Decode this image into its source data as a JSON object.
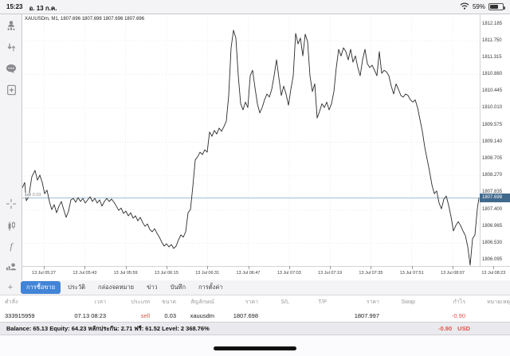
{
  "status_bar": {
    "time": "15:23",
    "date": "อ. 13 ก.ค.",
    "battery_percent": "59%"
  },
  "sidebar": {
    "icons": [
      "account-icon",
      "trade-arrows-icon",
      "chat-icon",
      "new-order-icon",
      "crosshair-icon",
      "chart-type-icon",
      "indicators-icon",
      "objects-icon"
    ],
    "timeframe_label": "M1"
  },
  "chart": {
    "title": "XAUUSDm, M1, 1807.696 1807.698 1807.696 1807.696",
    "position_label": "sell 0.03",
    "current_price_label": "1807.698",
    "y_axis_labels": [
      "1812.185",
      "1811.750",
      "1811.315",
      "1810.880",
      "1810.445",
      "1810.010",
      "1809.575",
      "1809.140",
      "1808.705",
      "1808.270",
      "1807.835",
      "1807.400",
      "1806.965",
      "1806.530",
      "1806.095"
    ],
    "x_axis_labels": [
      "13 Jul 05:27",
      "13 Jul 05:43",
      "13 Jul 05:59",
      "13 Jul 06:15",
      "13 Jul 06:31",
      "13 Jul 06:47",
      "13 Jul 07:03",
      "13 Jul 07:19",
      "13 Jul 07:35",
      "13 Jul 07:51",
      "13 Jul 08:07",
      "13 Jul 08:23"
    ]
  },
  "chart_data": {
    "type": "line",
    "symbol": "XAUUSDm",
    "timeframe": "M1",
    "ohlc_display": [
      1807.696,
      1807.698,
      1807.696,
      1807.696
    ],
    "current_price": 1807.698,
    "position_price_line": 1807.698,
    "ylim": [
      1806.095,
      1812.185
    ],
    "grid": true,
    "points": [
      [
        0,
        1807.96
      ],
      [
        3,
        1808.1
      ],
      [
        5,
        1807.63
      ],
      [
        8,
        1807.73
      ],
      [
        12,
        1808.25
      ],
      [
        16,
        1808.41
      ],
      [
        19,
        1808.16
      ],
      [
        22,
        1808.29
      ],
      [
        25,
        1808.1
      ],
      [
        28,
        1807.81
      ],
      [
        31,
        1807.9
      ],
      [
        34,
        1807.61
      ],
      [
        37,
        1807.4
      ],
      [
        40,
        1807.53
      ],
      [
        43,
        1807.32
      ],
      [
        46,
        1807.49
      ],
      [
        49,
        1807.61
      ],
      [
        52,
        1807.4
      ],
      [
        55,
        1807.2
      ],
      [
        58,
        1807.36
      ],
      [
        61,
        1807.65
      ],
      [
        64,
        1807.69
      ],
      [
        67,
        1807.59
      ],
      [
        70,
        1807.71
      ],
      [
        73,
        1807.61
      ],
      [
        76,
        1807.69
      ],
      [
        79,
        1807.57
      ],
      [
        82,
        1807.65
      ],
      [
        85,
        1807.73
      ],
      [
        88,
        1807.61
      ],
      [
        91,
        1807.69
      ],
      [
        94,
        1807.57
      ],
      [
        97,
        1807.65
      ],
      [
        100,
        1807.49
      ],
      [
        103,
        1807.61
      ],
      [
        106,
        1807.69
      ],
      [
        109,
        1807.61
      ],
      [
        112,
        1807.67
      ],
      [
        115,
        1807.59
      ],
      [
        118,
        1807.49
      ],
      [
        121,
        1807.38
      ],
      [
        124,
        1807.44
      ],
      [
        127,
        1807.3
      ],
      [
        130,
        1807.36
      ],
      [
        133,
        1807.24
      ],
      [
        136,
        1807.32
      ],
      [
        139,
        1807.18
      ],
      [
        142,
        1807.24
      ],
      [
        145,
        1807.11
      ],
      [
        148,
        1807.2
      ],
      [
        151,
        1807.07
      ],
      [
        154,
        1806.97
      ],
      [
        157,
        1807.03
      ],
      [
        160,
        1806.89
      ],
      [
        163,
        1806.83
      ],
      [
        166,
        1806.91
      ],
      [
        169,
        1806.79
      ],
      [
        172,
        1806.69
      ],
      [
        175,
        1806.56
      ],
      [
        178,
        1806.46
      ],
      [
        181,
        1806.52
      ],
      [
        184,
        1806.44
      ],
      [
        187,
        1806.5
      ],
      [
        190,
        1806.4
      ],
      [
        193,
        1806.46
      ],
      [
        196,
        1806.62
      ],
      [
        199,
        1806.75
      ],
      [
        202,
        1806.69
      ],
      [
        205,
        1806.83
      ],
      [
        208,
        1807.32
      ],
      [
        211,
        1807.4
      ],
      [
        214,
        1808.0
      ],
      [
        217,
        1808.68
      ],
      [
        220,
        1808.76
      ],
      [
        223,
        1808.88
      ],
      [
        226,
        1808.82
      ],
      [
        229,
        1808.94
      ],
      [
        232,
        1808.88
      ],
      [
        235,
        1809.4
      ],
      [
        238,
        1809.29
      ],
      [
        241,
        1809.44
      ],
      [
        244,
        1809.35
      ],
      [
        247,
        1809.5
      ],
      [
        250,
        1809.42
      ],
      [
        253,
        1809.54
      ],
      [
        256,
        1809.68
      ],
      [
        259,
        1810.34
      ],
      [
        262,
        1811.57
      ],
      [
        265,
        1812.02
      ],
      [
        268,
        1811.82
      ],
      [
        271,
        1810.85
      ],
      [
        274,
        1810.13
      ],
      [
        277,
        1809.97
      ],
      [
        280,
        1810.17
      ],
      [
        283,
        1810.03
      ],
      [
        286,
        1810.85
      ],
      [
        289,
        1810.99
      ],
      [
        292,
        1810.54
      ],
      [
        295,
        1810.13
      ],
      [
        298,
        1809.89
      ],
      [
        301,
        1810.03
      ],
      [
        304,
        1810.23
      ],
      [
        307,
        1810.38
      ],
      [
        310,
        1810.3
      ],
      [
        313,
        1810.5
      ],
      [
        316,
        1810.85
      ],
      [
        319,
        1811.26
      ],
      [
        322,
        1810.79
      ],
      [
        325,
        1810.34
      ],
      [
        328,
        1810.58
      ],
      [
        331,
        1810.38
      ],
      [
        334,
        1810.09
      ],
      [
        337,
        1810.5
      ],
      [
        340,
        1810.85
      ],
      [
        343,
        1811.94
      ],
      [
        346,
        1811.67
      ],
      [
        349,
        1811.82
      ],
      [
        352,
        1811.36
      ],
      [
        355,
        1811.92
      ],
      [
        358,
        1811.73
      ],
      [
        361,
        1810.85
      ],
      [
        364,
        1810.44
      ],
      [
        367,
        1810.64
      ],
      [
        370,
        1809.76
      ],
      [
        373,
        1809.93
      ],
      [
        376,
        1810.13
      ],
      [
        379,
        1810.03
      ],
      [
        382,
        1810.17
      ],
      [
        385,
        1809.97
      ],
      [
        388,
        1810.13
      ],
      [
        391,
        1810.44
      ],
      [
        394,
        1811.06
      ],
      [
        397,
        1811.53
      ],
      [
        400,
        1811.36
      ],
      [
        403,
        1811.57
      ],
      [
        406,
        1811.47
      ],
      [
        409,
        1811.26
      ],
      [
        412,
        1811.53
      ],
      [
        415,
        1811.2
      ],
      [
        418,
        1811.36
      ],
      [
        421,
        1811.06
      ],
      [
        424,
        1810.85
      ],
      [
        427,
        1811.26
      ],
      [
        430,
        1811.53
      ],
      [
        433,
        1811.16
      ],
      [
        436,
        1811.06
      ],
      [
        439,
        1811.12
      ],
      [
        442,
        1810.99
      ],
      [
        445,
        1810.85
      ],
      [
        448,
        1811.47
      ],
      [
        451,
        1810.91
      ],
      [
        454,
        1810.99
      ],
      [
        457,
        1810.95
      ],
      [
        460,
        1810.85
      ],
      [
        463,
        1810.58
      ],
      [
        466,
        1810.38
      ],
      [
        469,
        1810.64
      ],
      [
        472,
        1810.5
      ],
      [
        475,
        1810.34
      ],
      [
        478,
        1810.3
      ],
      [
        481,
        1810.38
      ],
      [
        484,
        1810.34
      ],
      [
        487,
        1810.23
      ],
      [
        490,
        1810.17
      ],
      [
        493,
        1810.23
      ],
      [
        496,
        1810.03
      ],
      [
        499,
        1809.72
      ],
      [
        502,
        1809.42
      ],
      [
        505,
        1809.01
      ],
      [
        508,
        1808.7
      ],
      [
        511,
        1808.39
      ],
      [
        514,
        1808.04
      ],
      [
        517,
        1807.81
      ],
      [
        520,
        1807.88
      ],
      [
        523,
        1807.57
      ],
      [
        526,
        1807.42
      ],
      [
        529,
        1807.67
      ],
      [
        532,
        1807.75
      ],
      [
        535,
        1807.51
      ],
      [
        538,
        1807.22
      ],
      [
        541,
        1806.85
      ],
      [
        544,
        1806.99
      ],
      [
        547,
        1807.09
      ],
      [
        550,
        1806.99
      ],
      [
        553,
        1806.85
      ],
      [
        556,
        1806.73
      ],
      [
        559,
        1806.44
      ],
      [
        562,
        1805.97
      ],
      [
        565,
        1806.65
      ],
      [
        568,
        1806.75
      ],
      [
        571,
        1807.42
      ],
      [
        573,
        1807.7
      ]
    ]
  },
  "tabs": {
    "add_button": "+",
    "items": [
      "การซื้อขาย",
      "ประวัติ",
      "กล่องจดหมาย",
      "ข่าว",
      "บันทึก",
      "การตั้งค่า"
    ],
    "selected_index": 0
  },
  "orders_table": {
    "headers": [
      "คำสั่ง",
      "เวลา",
      "ประเภท",
      "ขนาด",
      "สัญลักษณ์",
      "ราคา",
      "S/L",
      "T/P",
      "ราคา",
      "Swap",
      "กำไร",
      "หมายเหตุ"
    ],
    "cells": [
      "333915959",
      "07.13 08:23",
      "sell",
      "0.03",
      "xauusdm",
      "1807.698",
      "",
      "",
      "1807.997",
      "",
      "-0.90",
      ""
    ]
  },
  "account_bar": {
    "summary": "Balance: 65.13 Equity: 64.23 หลักประกัน: 2.71 ฟรี: 61.52 Level: 2 368.76%",
    "floating_pl": "-0.90",
    "currency": "USD"
  },
  "colors": {
    "accent_blue": "#4284d6",
    "sell_red": "#e2544b",
    "price_box_blue": "#41698c",
    "price_line_blue": "#8fb0c9"
  }
}
